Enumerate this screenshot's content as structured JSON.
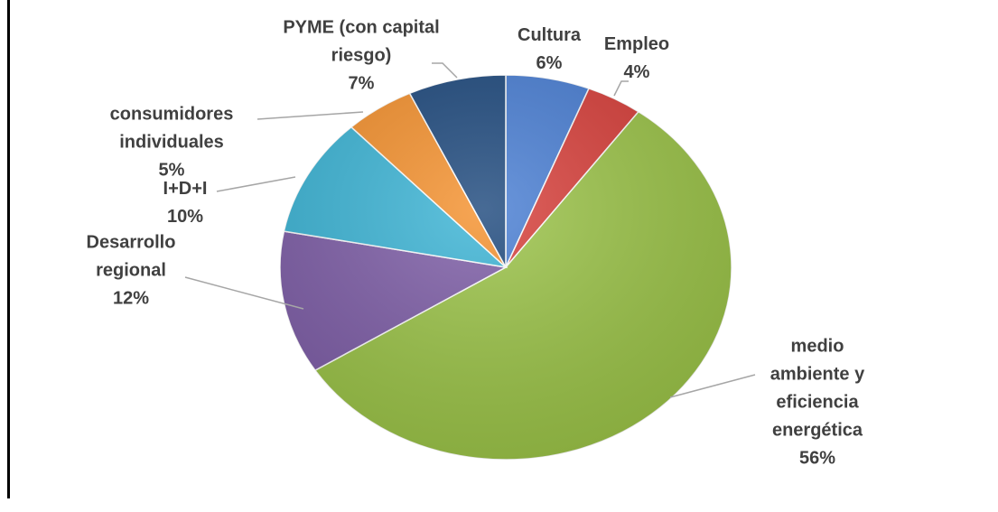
{
  "chart_data": {
    "type": "pie",
    "categories": [
      "Cultura",
      "Empleo",
      "medio ambiente y eficiencia energética",
      "Desarrollo regional",
      "I+D+I",
      "consumidores individuales",
      "PYME (con capital riesgo)"
    ],
    "values": [
      6,
      4,
      56,
      12,
      10,
      5,
      7
    ],
    "value_labels": [
      "6%",
      "4%",
      "56%",
      "12%",
      "10%",
      "5%",
      "7%"
    ],
    "colors": [
      "#4a7fd4",
      "#d8403b",
      "#9cc449",
      "#7f5fa8",
      "#3db5d6",
      "#f5922f",
      "#1f4a7e"
    ]
  }
}
